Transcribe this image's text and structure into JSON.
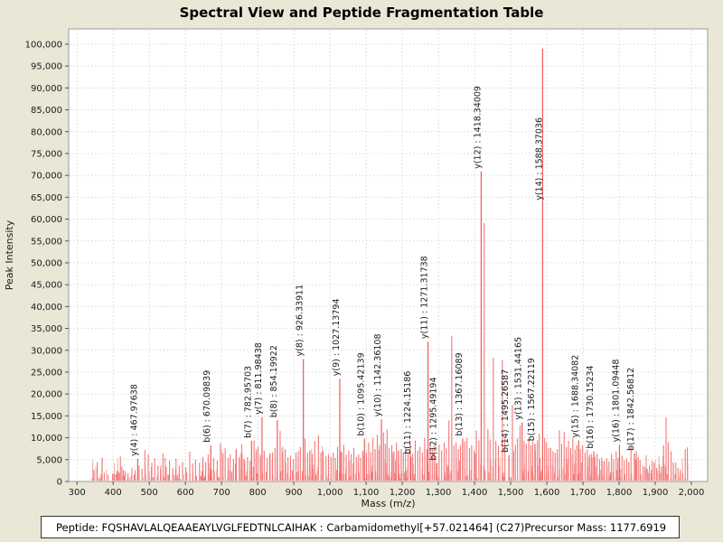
{
  "title": "Spectral View and Peptide Fragmentation Table",
  "footer": {
    "peptide": "Peptide: FQSHAVLALQEAAEAYLVGLFEDTNLCAIHAK : Carbamidomethyl[+57.021464] (C27)",
    "precursor": "Precursor Mass: 1177.6919"
  },
  "colors": {
    "background": "#eae7d7",
    "plot_bg": "#ffffff",
    "plot_border": "#9a9a9a",
    "grid": "#d8d8d8",
    "tick": "#555555",
    "text": "#1a1a1a",
    "peak_strong": "#f25b5b",
    "peak_mid": "#f47777",
    "peak_light": "#f9a8a8",
    "label_text": "#1a1a1a"
  },
  "chart_data": {
    "type": "bar",
    "title": "Spectral View and Peptide Fragmentation Table",
    "xlabel": "Mass (m/z)",
    "ylabel": "Peak Intensity",
    "xlim": [
      277,
      2045
    ],
    "ylim": [
      0,
      103500
    ],
    "grid": true,
    "x_ticks": [
      300,
      400,
      500,
      600,
      700,
      800,
      900,
      1000,
      1100,
      1200,
      1300,
      1400,
      1500,
      1600,
      1700,
      1800,
      1900,
      2000
    ],
    "y_ticks": [
      0,
      5000,
      10000,
      15000,
      20000,
      25000,
      30000,
      35000,
      40000,
      45000,
      50000,
      55000,
      60000,
      65000,
      70000,
      75000,
      80000,
      85000,
      90000,
      95000,
      100000
    ],
    "labeled_peaks": [
      {
        "fragment": "y(4)",
        "mz": 467.97638,
        "intensity": 5200,
        "label": "y(4) : 467.97638"
      },
      {
        "fragment": "b(6)",
        "mz": 670.09839,
        "intensity": 8300,
        "label": "b(6) : 670.09839"
      },
      {
        "fragment": "b(7)",
        "mz": 782.95703,
        "intensity": 9300,
        "label": "b(7) : 782.95703"
      },
      {
        "fragment": "y(7)",
        "mz": 811.98438,
        "intensity": 14700,
        "label": "y(7) : 811.98438"
      },
      {
        "fragment": "b(8)",
        "mz": 854.19922,
        "intensity": 14000,
        "label": "b(8) : 854.19922"
      },
      {
        "fragment": "y(8)",
        "mz": 926.33911,
        "intensity": 28000,
        "label": "y(8) : 926.33911"
      },
      {
        "fragment": "y(9)",
        "mz": 1027.13794,
        "intensity": 23500,
        "label": "y(9) : 1027.13794"
      },
      {
        "fragment": "b(10)",
        "mz": 1095.42139,
        "intensity": 9800,
        "label": "b(10) : 1095.42139"
      },
      {
        "fragment": "y(10)",
        "mz": 1142.36108,
        "intensity": 14200,
        "label": "y(10) : 1142.36108"
      },
      {
        "fragment": "b(11)",
        "mz": 1224.15186,
        "intensity": 5600,
        "label": "b(11) : 1224.15186"
      },
      {
        "fragment": "y(11)",
        "mz": 1271.31738,
        "intensity": 32000,
        "label": "y(11) : 1271.31738"
      },
      {
        "fragment": "b(12)",
        "mz": 1295.49194,
        "intensity": 4200,
        "label": "b(12) : 1295.49194"
      },
      {
        "fragment": "b(13)",
        "mz": 1367.16089,
        "intensity": 9800,
        "label": "b(13) : 1367.16089"
      },
      {
        "fragment": "y(12)",
        "mz": 1418.34009,
        "intensity": 70900,
        "label": "y(12) : 1418.34009"
      },
      {
        "fragment": "b(14)",
        "mz": 1495.26587,
        "intensity": 6000,
        "label": "b(14) : 1495.26587"
      },
      {
        "fragment": "y(13)",
        "mz": 1531.44165,
        "intensity": 13500,
        "label": "y(13) : 1531.44165"
      },
      {
        "fragment": "b(15)",
        "mz": 1567.22119,
        "intensity": 8600,
        "label": "b(15) : 1567.22119"
      },
      {
        "fragment": "y(14)",
        "mz": 1588.37036,
        "intensity": 99000,
        "label": "y(14) : 1588.37036"
      },
      {
        "fragment": "y(15)",
        "mz": 1688.34082,
        "intensity": 9400,
        "label": "y(15) : 1688.34082"
      },
      {
        "fragment": "b(16)",
        "mz": 1730.15234,
        "intensity": 6900,
        "label": "b(16) : 1730.15234"
      },
      {
        "fragment": "y(16)",
        "mz": 1801.09448,
        "intensity": 8400,
        "label": "y(16) : 1801.09448"
      },
      {
        "fragment": "b(17)",
        "mz": 1842.56812,
        "intensity": 6400,
        "label": "b(17) : 1842.56812"
      }
    ],
    "unlabeled_peaks": [
      [
        347,
        2600
      ],
      [
        356,
        4400
      ],
      [
        367,
        1600
      ],
      [
        404,
        1700
      ],
      [
        412,
        2300
      ],
      [
        420,
        5700
      ],
      [
        428,
        2700
      ],
      [
        433,
        2400
      ],
      [
        441,
        1900
      ],
      [
        452,
        3100
      ],
      [
        461,
        2600
      ],
      [
        472,
        3600
      ],
      [
        480,
        2900
      ],
      [
        488,
        7200
      ],
      [
        497,
        6200
      ],
      [
        506,
        3400
      ],
      [
        515,
        5300
      ],
      [
        524,
        3600
      ],
      [
        531,
        2800
      ],
      [
        538,
        6400
      ],
      [
        547,
        3400
      ],
      [
        556,
        4800
      ],
      [
        565,
        3100
      ],
      [
        574,
        5200
      ],
      [
        583,
        3600
      ],
      [
        592,
        4400
      ],
      [
        601,
        3300
      ],
      [
        612,
        6800
      ],
      [
        620,
        4100
      ],
      [
        628,
        5000
      ],
      [
        639,
        4300
      ],
      [
        648,
        5600
      ],
      [
        656,
        4400
      ],
      [
        663,
        6200
      ],
      [
        678,
        5400
      ],
      [
        688,
        4800
      ],
      [
        697,
        8800
      ],
      [
        704,
        6400
      ],
      [
        710,
        7600
      ],
      [
        718,
        5400
      ],
      [
        724,
        6200
      ],
      [
        733,
        5200
      ],
      [
        741,
        7300
      ],
      [
        749,
        5600
      ],
      [
        757,
        6300
      ],
      [
        764,
        4900
      ],
      [
        772,
        5600
      ],
      [
        779,
        4700
      ],
      [
        790,
        9400
      ],
      [
        796,
        6900
      ],
      [
        801,
        7900
      ],
      [
        807,
        6100
      ],
      [
        818,
        7000
      ],
      [
        826,
        5400
      ],
      [
        833,
        6100
      ],
      [
        841,
        6600
      ],
      [
        848,
        7700
      ],
      [
        862,
        11600
      ],
      [
        869,
        6800
      ],
      [
        876,
        7400
      ],
      [
        884,
        5600
      ],
      [
        891,
        5900
      ],
      [
        899,
        5100
      ],
      [
        906,
        6600
      ],
      [
        912,
        5600
      ],
      [
        918,
        7900
      ],
      [
        931,
        9800
      ],
      [
        938,
        6600
      ],
      [
        944,
        7100
      ],
      [
        951,
        6300
      ],
      [
        958,
        9300
      ],
      [
        968,
        10600
      ],
      [
        975,
        6600
      ],
      [
        981,
        7000
      ],
      [
        989,
        5800
      ],
      [
        996,
        6200
      ],
      [
        1003,
        5600
      ],
      [
        1009,
        6600
      ],
      [
        1015,
        5400
      ],
      [
        1021,
        7900
      ],
      [
        1032,
        6700
      ],
      [
        1038,
        8400
      ],
      [
        1045,
        6100
      ],
      [
        1052,
        7100
      ],
      [
        1059,
        6300
      ],
      [
        1066,
        7700
      ],
      [
        1073,
        5600
      ],
      [
        1079,
        6200
      ],
      [
        1085,
        5400
      ],
      [
        1091,
        7000
      ],
      [
        1101,
        6400
      ],
      [
        1107,
        8900
      ],
      [
        1113,
        6700
      ],
      [
        1119,
        9900
      ],
      [
        1125,
        7400
      ],
      [
        1131,
        10700
      ],
      [
        1137,
        8300
      ],
      [
        1148,
        11200
      ],
      [
        1153,
        8600
      ],
      [
        1158,
        11900
      ],
      [
        1164,
        7600
      ],
      [
        1171,
        8300
      ],
      [
        1177,
        6900
      ],
      [
        1184,
        8900
      ],
      [
        1190,
        7100
      ],
      [
        1197,
        7400
      ],
      [
        1203,
        6400
      ],
      [
        1209,
        7900
      ],
      [
        1216,
        6600
      ],
      [
        1222,
        8700
      ],
      [
        1229,
        6300
      ],
      [
        1236,
        9400
      ],
      [
        1243,
        7100
      ],
      [
        1249,
        7900
      ],
      [
        1256,
        6600
      ],
      [
        1262,
        9900
      ],
      [
        1268,
        7400
      ],
      [
        1277,
        9000
      ],
      [
        1283,
        7400
      ],
      [
        1288,
        8100
      ],
      [
        1302,
        8400
      ],
      [
        1309,
        7100
      ],
      [
        1316,
        8900
      ],
      [
        1322,
        7600
      ],
      [
        1329,
        14000
      ],
      [
        1337,
        33200
      ],
      [
        1343,
        8300
      ],
      [
        1349,
        9000
      ],
      [
        1355,
        7400
      ],
      [
        1361,
        8300
      ],
      [
        1373,
        9100
      ],
      [
        1379,
        9900
      ],
      [
        1386,
        7600
      ],
      [
        1392,
        8300
      ],
      [
        1399,
        7100
      ],
      [
        1405,
        11700
      ],
      [
        1412,
        9400
      ],
      [
        1427,
        59100
      ],
      [
        1437,
        12000
      ],
      [
        1443,
        9600
      ],
      [
        1452,
        28300
      ],
      [
        1459,
        9300
      ],
      [
        1466,
        8100
      ],
      [
        1477,
        27800
      ],
      [
        1484,
        9900
      ],
      [
        1505,
        17500
      ],
      [
        1513,
        8400
      ],
      [
        1519,
        9900
      ],
      [
        1526,
        12800
      ],
      [
        1537,
        9300
      ],
      [
        1543,
        8600
      ],
      [
        1550,
        9800
      ],
      [
        1556,
        8300
      ],
      [
        1561,
        9100
      ],
      [
        1574,
        9400
      ],
      [
        1579,
        10900
      ],
      [
        1594,
        9900
      ],
      [
        1599,
        8900
      ],
      [
        1605,
        7600
      ],
      [
        1611,
        7700
      ],
      [
        1617,
        6900
      ],
      [
        1623,
        6600
      ],
      [
        1629,
        7400
      ],
      [
        1635,
        11700
      ],
      [
        1641,
        8600
      ],
      [
        1648,
        11300
      ],
      [
        1654,
        7900
      ],
      [
        1660,
        9300
      ],
      [
        1666,
        7600
      ],
      [
        1672,
        9900
      ],
      [
        1678,
        7300
      ],
      [
        1683,
        8300
      ],
      [
        1693,
        7400
      ],
      [
        1699,
        8300
      ],
      [
        1706,
        6600
      ],
      [
        1712,
        7300
      ],
      [
        1718,
        6100
      ],
      [
        1723,
        6300
      ],
      [
        1733,
        5600
      ],
      [
        1739,
        6300
      ],
      [
        1746,
        5100
      ],
      [
        1752,
        5500
      ],
      [
        1759,
        4700
      ],
      [
        1766,
        5300
      ],
      [
        1772,
        4600
      ],
      [
        1779,
        6300
      ],
      [
        1785,
        5100
      ],
      [
        1792,
        6900
      ],
      [
        1797,
        5400
      ],
      [
        1808,
        5900
      ],
      [
        1814,
        4900
      ],
      [
        1821,
        5300
      ],
      [
        1827,
        4400
      ],
      [
        1833,
        8000
      ],
      [
        1848,
        6900
      ],
      [
        1853,
        5600
      ],
      [
        1858,
        4900
      ],
      [
        1866,
        3600
      ],
      [
        1871,
        3300
      ],
      [
        1878,
        2900
      ],
      [
        1884,
        3600
      ],
      [
        1890,
        2700
      ],
      [
        1897,
        4300
      ],
      [
        1904,
        3100
      ],
      [
        1911,
        3900
      ],
      [
        1917,
        3400
      ],
      [
        1923,
        8300
      ],
      [
        1930,
        14700
      ],
      [
        1936,
        9000
      ],
      [
        1944,
        6900
      ],
      [
        1950,
        4400
      ],
      [
        1957,
        4300
      ],
      [
        1963,
        3100
      ],
      [
        1969,
        2400
      ],
      [
        1976,
        1900
      ],
      [
        1983,
        7400
      ],
      [
        1989,
        7800
      ]
    ],
    "noise": {
      "seed": 20,
      "count": 460,
      "mz_min": 336,
      "mz_max": 1995,
      "base": 350,
      "spread": 5100
    }
  }
}
